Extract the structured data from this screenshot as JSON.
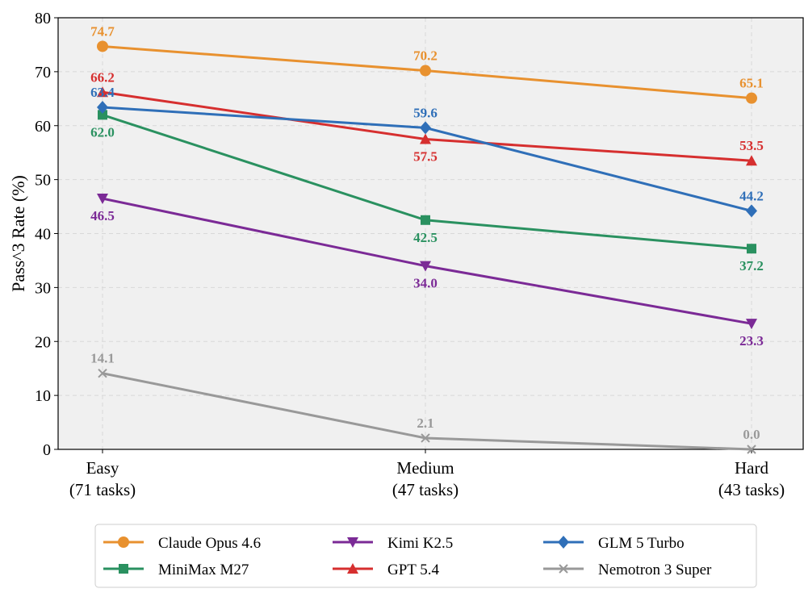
{
  "chart_data": {
    "type": "line",
    "title": "",
    "xlabel": "",
    "ylabel": "Pass^3 Rate (%)",
    "ylim": [
      0,
      80
    ],
    "yticks": [
      0,
      10,
      20,
      30,
      40,
      50,
      60,
      70,
      80
    ],
    "categories": [
      "Easy\n(71 tasks)",
      "Medium\n(47 tasks)",
      "Hard\n(43 tasks)"
    ],
    "grid": true,
    "legend_position": "bottom-center",
    "series": [
      {
        "name": "Claude Opus 4.6",
        "color": "#e8912f",
        "marker": "circle",
        "values": [
          74.7,
          70.2,
          65.1
        ],
        "labels": [
          "74.7",
          "70.2",
          "65.1"
        ]
      },
      {
        "name": "MiniMax M27",
        "color": "#2a9160",
        "marker": "square",
        "values": [
          62.0,
          42.5,
          37.2
        ],
        "labels": [
          "62.0",
          "42.5",
          "37.2"
        ]
      },
      {
        "name": "Kimi K2.5",
        "color": "#7b2a96",
        "marker": "triangle-down",
        "values": [
          46.5,
          34.0,
          23.3
        ],
        "labels": [
          "46.5",
          "34.0",
          "23.3"
        ]
      },
      {
        "name": "GPT 5.4",
        "color": "#d62f2f",
        "marker": "triangle-up",
        "values": [
          66.2,
          57.5,
          53.5
        ],
        "labels": [
          "66.2",
          "57.5",
          "53.5"
        ]
      },
      {
        "name": "GLM 5 Turbo",
        "color": "#2f6fb8",
        "marker": "diamond",
        "values": [
          63.4,
          59.6,
          44.2
        ],
        "labels": [
          "63.4",
          "59.6",
          "44.2"
        ]
      },
      {
        "name": "Nemotron 3 Super",
        "color": "#999999",
        "marker": "x",
        "values": [
          14.1,
          2.1,
          0.0
        ],
        "labels": [
          "14.1",
          "2.1",
          "0.0"
        ]
      }
    ]
  }
}
